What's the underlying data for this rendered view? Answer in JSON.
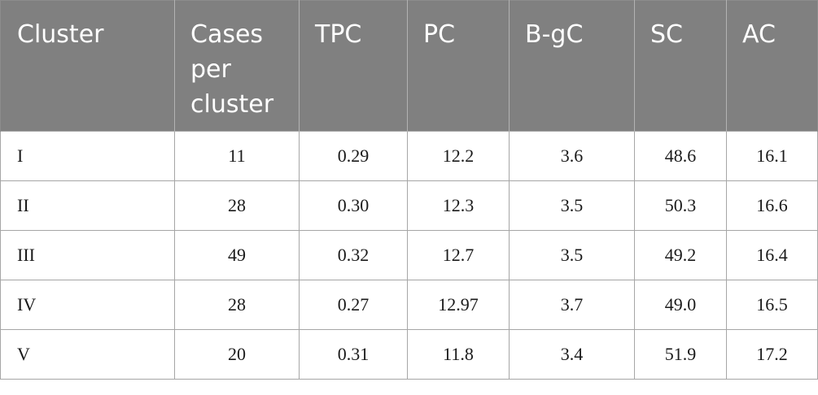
{
  "table": {
    "headers": [
      "Cluster",
      "Cases\nper\ncluster",
      "TPC",
      "PC",
      "B-gC",
      "SC",
      "AC"
    ],
    "rows": [
      [
        "I",
        "11",
        "0.29",
        "12.2",
        "3.6",
        "48.6",
        "16.1"
      ],
      [
        "II",
        "28",
        "0.30",
        "12.3",
        "3.5",
        "50.3",
        "16.6"
      ],
      [
        "III",
        "49",
        "0.32",
        "12.7",
        "3.5",
        "49.2",
        "16.4"
      ],
      [
        "IV",
        "28",
        "0.27",
        "12.97",
        "3.7",
        "49.0",
        "16.5"
      ],
      [
        "V",
        "20",
        "0.31",
        "11.8",
        "3.4",
        "51.9",
        "17.2"
      ]
    ]
  },
  "colors": {
    "header_background": "#808080",
    "header_text": "#ffffff",
    "border": "#a6a6a6"
  }
}
